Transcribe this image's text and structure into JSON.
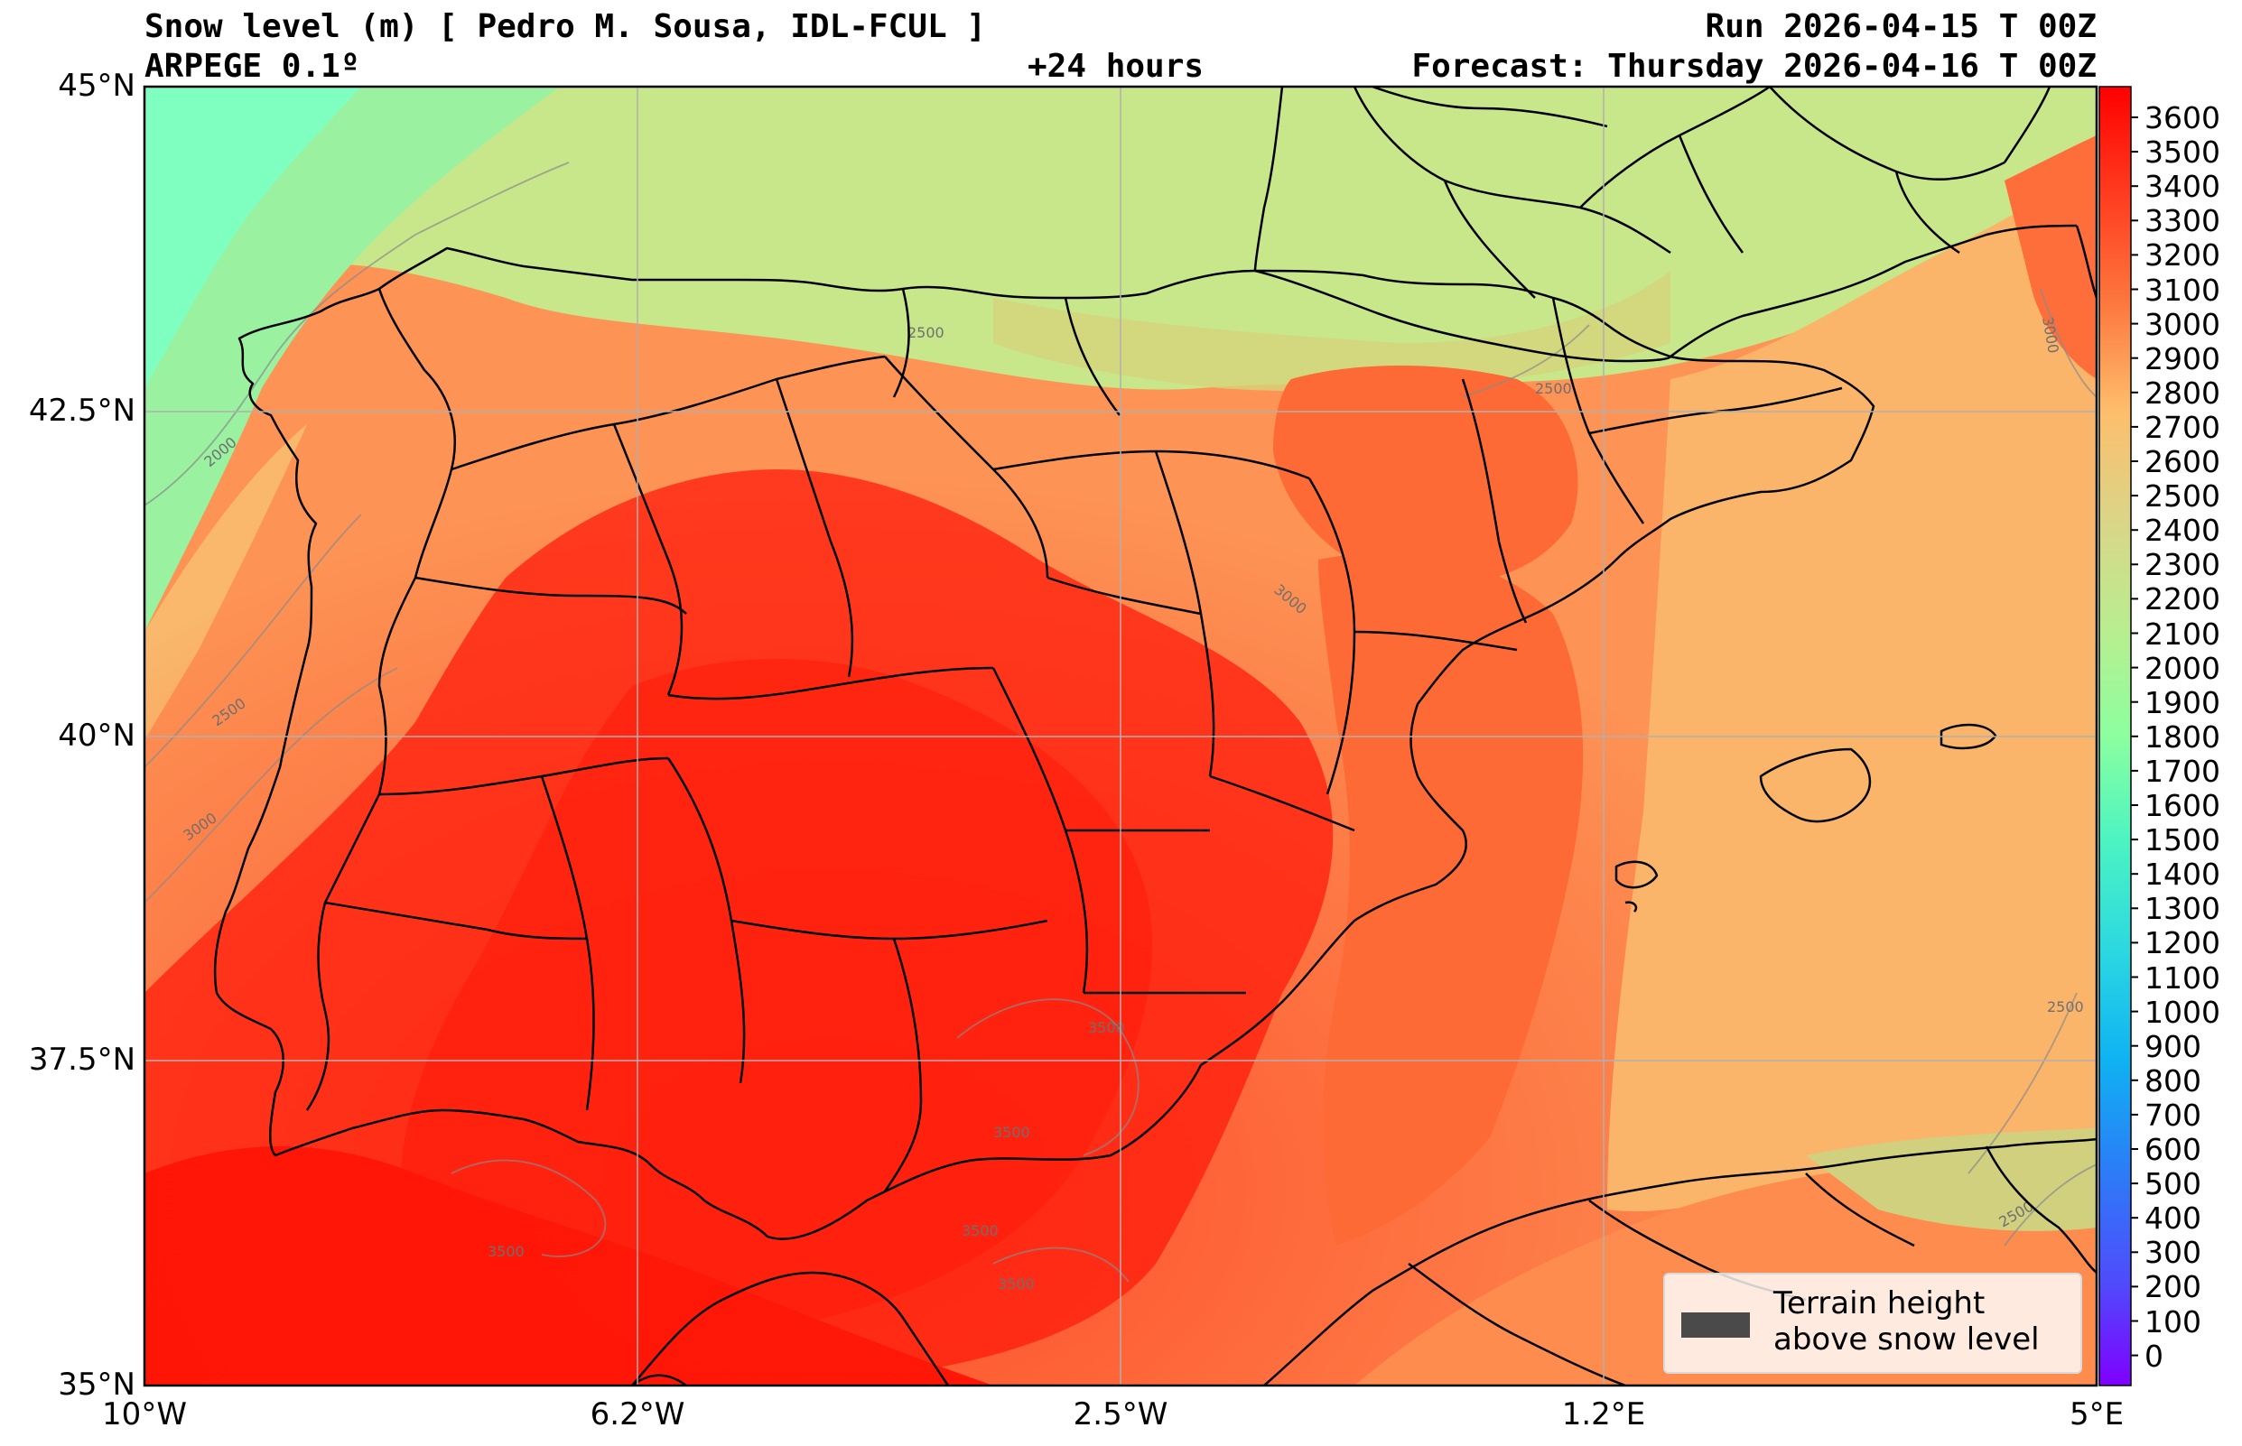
{
  "header": {
    "title": "Snow level (m) [ Pedro M. Sousa, IDL-FCUL ]",
    "model": "ARPEGE 0.1º",
    "lead": "+24 hours",
    "run": "Run 2026-04-15 T 00Z",
    "forecast": "Forecast: Thursday 2026-04-16 T 00Z"
  },
  "axes": {
    "lat_ticks": [
      "45°N",
      "42.5°N",
      "40°N",
      "37.5°N",
      "35°N"
    ],
    "lon_ticks": [
      "10°W",
      "6.2°W",
      "2.5°W",
      "1.2°E",
      "5°E"
    ]
  },
  "colorbar": {
    "labels": [
      "3600",
      "3500",
      "3400",
      "3300",
      "3200",
      "3100",
      "3000",
      "2900",
      "2800",
      "2700",
      "2600",
      "2500",
      "2400",
      "2300",
      "2200",
      "2100",
      "2000",
      "1900",
      "1800",
      "1700",
      "1600",
      "1500",
      "1400",
      "1300",
      "1200",
      "1100",
      "1000",
      "900",
      "800",
      "700",
      "600",
      "500",
      "400",
      "300",
      "200",
      "100",
      "0"
    ],
    "colors": {
      "top": "#ff0000",
      "orange": "#fd9c55",
      "yellowgreen": "#c8e68a",
      "green": "#7fffc0",
      "cyan": "#2ad6e2",
      "blue": "#2a7ff7",
      "bottom": "#7f00ff"
    }
  },
  "contour_labels": [
    "2000",
    "2500",
    "2500",
    "2500",
    "3000",
    "3000",
    "3000",
    "3500",
    "3500",
    "3500",
    "3500",
    "3500",
    "2500",
    "2500"
  ],
  "legend": {
    "line1": "Terrain height",
    "line2": "above snow level",
    "swatch_color": "#4a4a4a"
  }
}
